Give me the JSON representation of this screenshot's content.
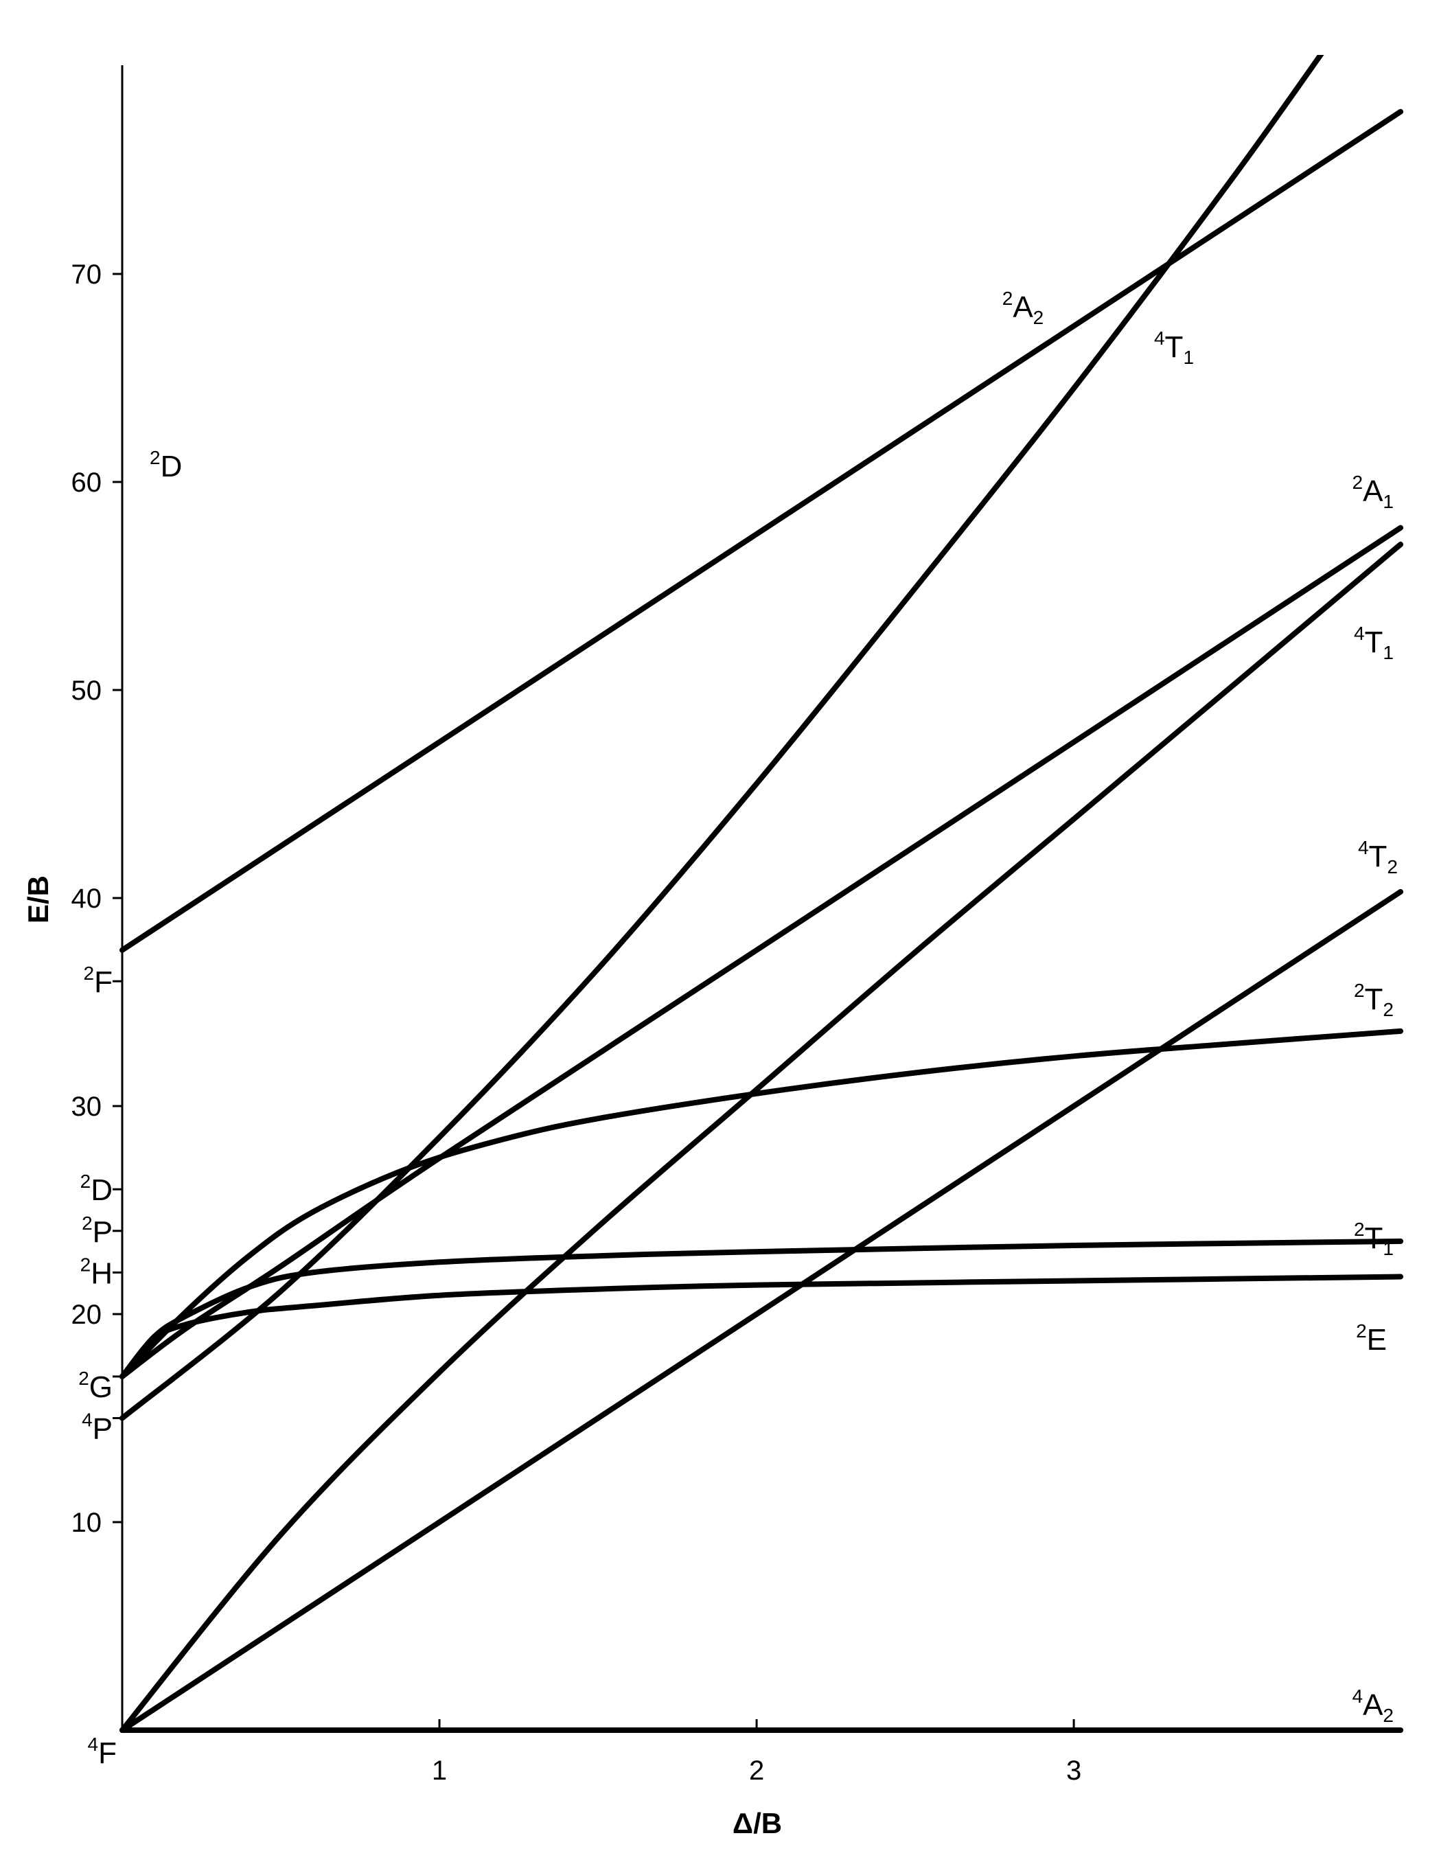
{
  "chart_data": {
    "type": "line",
    "title": "",
    "xlabel": "Δ/B",
    "ylabel": "E/B",
    "xlim": [
      0,
      4.03
    ],
    "ylim": [
      0,
      80.5
    ],
    "grid": false,
    "x_ticks": [
      {
        "value": 1,
        "label": "1"
      },
      {
        "value": 2,
        "label": "2"
      },
      {
        "value": 3,
        "label": "3"
      }
    ],
    "y_ticks": [
      {
        "value": 10,
        "label": "10"
      },
      {
        "value": 20,
        "label": "20"
      },
      {
        "value": 30,
        "label": "30"
      },
      {
        "value": 40,
        "label": "40"
      },
      {
        "value": 50,
        "label": "50"
      },
      {
        "value": 60,
        "label": "60"
      },
      {
        "value": 70,
        "label": "70"
      }
    ],
    "free_ion_terms": [
      {
        "sup": "4",
        "base": "F",
        "sub": "",
        "value": 0
      },
      {
        "sup": "4",
        "base": "P",
        "sub": "",
        "value": 15
      },
      {
        "sup": "2",
        "base": "G",
        "sub": "",
        "value": 17
      },
      {
        "sup": "2",
        "base": "H",
        "sub": "",
        "value": 22
      },
      {
        "sup": "2",
        "base": "P",
        "sub": "",
        "value": 24
      },
      {
        "sup": "2",
        "base": "D",
        "sub": "",
        "value": 26
      },
      {
        "sup": "2",
        "base": "F",
        "sub": "",
        "value": 36
      },
      {
        "sup": "2",
        "base": "D",
        "sub": "",
        "value": 60.8
      }
    ],
    "series": [
      {
        "label": {
          "sup": "4",
          "base": "A",
          "sub": "2"
        },
        "x": [
          0,
          1,
          2,
          3,
          4.03
        ],
        "y": [
          0,
          0,
          0,
          0,
          0
        ]
      },
      {
        "label": {
          "sup": "4",
          "base": "T",
          "sub": "2"
        },
        "x": [
          0,
          1,
          2,
          3,
          4.03
        ],
        "y": [
          0,
          10,
          20,
          30,
          40.3
        ]
      },
      {
        "label": {
          "sup": "4",
          "base": "T",
          "sub": "1"
        },
        "x": [
          0,
          0.5,
          1,
          1.5,
          2,
          2.5,
          3,
          3.5,
          4.03
        ],
        "y": [
          0,
          9.4,
          17.2,
          24.2,
          30.8,
          37.4,
          43.8,
          50.2,
          57.0
        ]
      },
      {
        "label": {
          "sup": "4",
          "base": "T",
          "sub": "1"
        },
        "x": [
          0,
          0.5,
          1,
          1.5,
          2,
          2.5,
          3,
          3.5,
          3.8
        ],
        "y": [
          15,
          21.1,
          28.5,
          36.6,
          45.5,
          54.9,
          64.5,
          74.6,
          81.0
        ]
      },
      {
        "label": {
          "sup": "2",
          "base": "E",
          "sub": ""
        },
        "x": [
          0,
          0.1,
          0.2,
          0.4,
          0.6,
          1,
          1.5,
          2,
          3,
          4.03
        ],
        "y": [
          17,
          18.8,
          19.5,
          20.1,
          20.4,
          20.9,
          21.2,
          21.4,
          21.6,
          21.8
        ]
      },
      {
        "label": {
          "sup": "2",
          "base": "T",
          "sub": "1"
        },
        "x": [
          0,
          0.1,
          0.2,
          0.4,
          0.6,
          1,
          1.5,
          2,
          3,
          4.03
        ],
        "y": [
          17,
          18.9,
          19.9,
          21.3,
          22.0,
          22.5,
          22.8,
          23.0,
          23.3,
          23.5
        ]
      },
      {
        "label": {
          "sup": "2",
          "base": "T",
          "sub": "2"
        },
        "x": [
          0,
          0.2,
          0.4,
          0.6,
          0.9,
          1.2,
          1.5,
          2,
          2.5,
          3,
          3.5,
          4.03
        ],
        "y": [
          17,
          20.1,
          22.8,
          24.9,
          27.0,
          28.4,
          29.4,
          30.6,
          31.6,
          32.4,
          33.0,
          33.6
        ]
      },
      {
        "label": {
          "sup": "2",
          "base": "A",
          "sub": "1"
        },
        "x": [
          0,
          0.2,
          0.5,
          1,
          2,
          3,
          4.03
        ],
        "y": [
          17,
          19.3,
          22.3,
          27.5,
          37.5,
          47.5,
          57.8
        ]
      },
      {
        "label": {
          "sup": "2",
          "base": "A",
          "sub": "2"
        },
        "x": [
          0,
          1,
          2,
          3,
          4.03
        ],
        "y": [
          37.5,
          47.5,
          57.5,
          67.5,
          77.8
        ]
      }
    ]
  }
}
